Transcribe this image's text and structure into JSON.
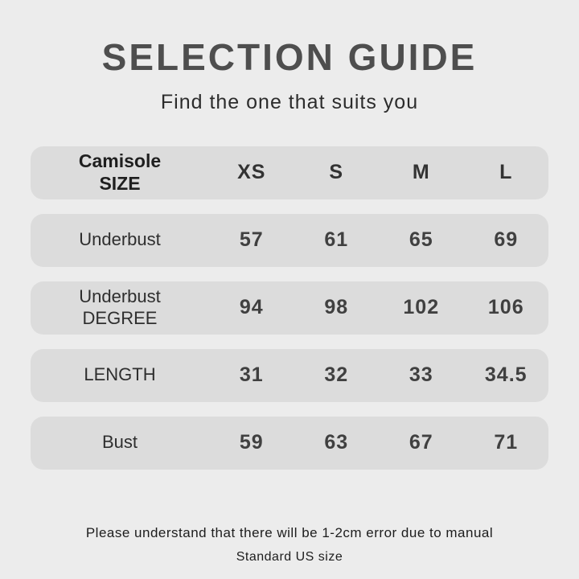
{
  "header": {
    "title": "SELECTION GUIDE",
    "subtitle": "Find the one that suits you"
  },
  "table": {
    "header_row": {
      "label": "Camisole\nSIZE",
      "cols": [
        "XS",
        "S",
        "M",
        "L"
      ]
    },
    "rows": [
      {
        "label": "Underbust",
        "values": [
          "57",
          "61",
          "65",
          "69"
        ]
      },
      {
        "label": "Underbust\nDEGREE",
        "values": [
          "94",
          "98",
          "102",
          "106"
        ]
      },
      {
        "label": "LENGTH",
        "values": [
          "31",
          "32",
          "33",
          "34.5"
        ]
      },
      {
        "label": "Bust",
        "values": [
          "59",
          "63",
          "67",
          "71"
        ]
      }
    ]
  },
  "footer": {
    "line1": "Please understand that there will be 1-2cm error due to manual",
    "line2": "Standard US size"
  },
  "colors": {
    "page_background": "#ececec",
    "row_background": "#dcdcdc",
    "title_text": "#4e4e4e",
    "body_text": "#2f2f2f"
  },
  "chart_data": {
    "type": "table",
    "title": "SELECTION GUIDE",
    "subtitle": "Find the one that suits you",
    "columns": [
      "Camisole SIZE",
      "XS",
      "S",
      "M",
      "L"
    ],
    "rows": [
      [
        "Underbust",
        57,
        61,
        65,
        69
      ],
      [
        "Underbust DEGREE",
        94,
        98,
        102,
        106
      ],
      [
        "LENGTH",
        31,
        32,
        33,
        34.5
      ],
      [
        "Bust",
        59,
        63,
        67,
        71
      ]
    ],
    "notes": [
      "Please understand that there will be 1-2cm error due to manual",
      "Standard US size"
    ]
  }
}
